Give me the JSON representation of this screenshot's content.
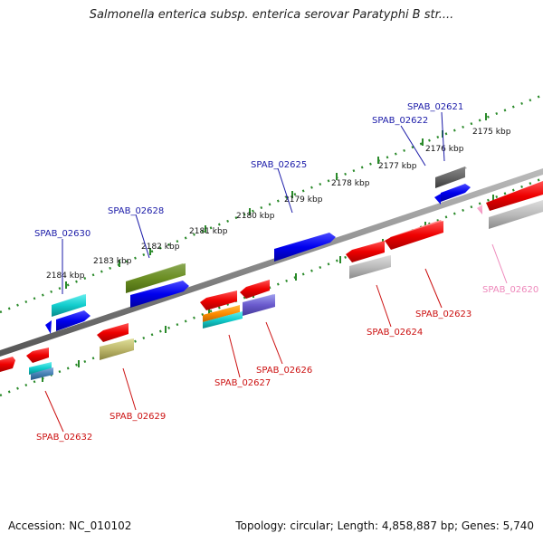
{
  "title": "Salmonella enterica subsp. enterica serovar Paratyphi B str....",
  "footer": {
    "accession": "Accession: NC_010102",
    "summary": "Topology: circular; Length: 4,858,887 bp; Genes: 5,740"
  },
  "scale_labels": [
    "2175 kbp",
    "2176 kbp",
    "2177 kbp",
    "2178 kbp",
    "2179 kbp",
    "2180 kbp",
    "2181 kbp",
    "2182 kbp",
    "2183 kbp",
    "2184 kbp"
  ],
  "gene_labels_top": [
    "SPAB_02621",
    "SPAB_02622",
    "SPAB_02625",
    "SPAB_02628",
    "SPAB_02630"
  ],
  "gene_labels_bottom": [
    "SPAB_02620",
    "SPAB_02623",
    "SPAB_02624",
    "SPAB_02626",
    "SPAB_02627",
    "SPAB_02629",
    "SPAB_02632"
  ],
  "colors": {
    "backbone": "#7a7a7a",
    "forward_label": "#1a1aa8",
    "reverse_label": "#cc1111",
    "pseudo_label": "#ee88bb",
    "tick": "#2a8a2a"
  }
}
